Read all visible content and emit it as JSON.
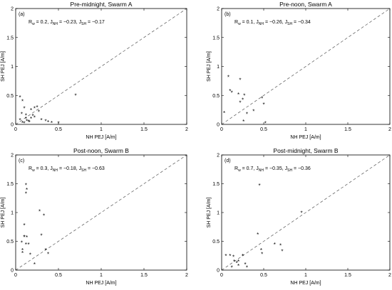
{
  "chart_data": [
    {
      "type": "scatter",
      "title": "Pre-midnight, Swarm A",
      "tag": "(a)",
      "stats": {
        "R": "0.2",
        "J_NH": "−0.23",
        "J_SH": "−0.17"
      },
      "xlabel": "NH PEJ [A/m]",
      "ylabel": "SH PEJ [A/m]",
      "xlim": [
        0,
        2
      ],
      "ylim": [
        0,
        2
      ],
      "xticks": [
        "0",
        "0.5",
        "1",
        "1.5",
        "2"
      ],
      "yticks": [
        "0",
        "0.5",
        "1",
        "1.5",
        "2"
      ],
      "reference_line": "y = x (dashed)",
      "x": [
        0.05,
        0.08,
        0.07,
        0.1,
        0.12,
        0.15,
        0.18,
        0.2,
        0.22,
        0.25,
        0.27,
        0.3,
        0.05,
        0.08,
        0.1,
        0.13,
        0.16,
        0.35,
        0.38,
        0.42,
        0.5,
        0.7,
        0.22,
        0.18,
        0.12
      ],
      "y": [
        0.47,
        0.4,
        0.18,
        0.28,
        0.1,
        0.05,
        0.25,
        0.15,
        0.12,
        0.3,
        0.22,
        0.08,
        0.08,
        0.03,
        0.02,
        0.06,
        0.04,
        0.06,
        0.04,
        0.03,
        0.02,
        0.5,
        0.28,
        0.1,
        0.16
      ]
    },
    {
      "type": "scatter",
      "title": "Pre-noon, Swarm A",
      "tag": "(b)",
      "stats": {
        "R": "0.1",
        "J_NH": "−0.26",
        "J_SH": "−0.34"
      },
      "xlabel": "NH PEJ [A/m]",
      "ylabel": "SH PEJ [A/m]",
      "xlim": [
        0,
        2
      ],
      "ylim": [
        0,
        2
      ],
      "xticks": [
        "0",
        "0.5",
        "1",
        "1.5",
        "2"
      ],
      "yticks": [
        "0",
        "0.5",
        "1",
        "1.5",
        "2"
      ],
      "reference_line": "y = x (dashed)",
      "x": [
        0.03,
        0.08,
        0.1,
        0.12,
        0.2,
        0.22,
        0.25,
        0.27,
        0.3,
        0.38,
        0.48,
        0.5,
        0.52,
        0.22,
        0.26
      ],
      "y": [
        0.2,
        0.82,
        0.58,
        0.55,
        0.52,
        0.77,
        0.43,
        0.5,
        0.18,
        0.23,
        0.45,
        0.35,
        0.02,
        0.38,
        0.05
      ]
    },
    {
      "type": "scatter",
      "title": "Post-noon, Swarm B",
      "tag": "(c)",
      "stats": {
        "R": "0.3",
        "J_NH": "−0.18",
        "J_SH": "−0.63"
      },
      "xlabel": "NH PEJ [A/m]",
      "ylabel": "SH PEJ [A/m]",
      "xlim": [
        0,
        2
      ],
      "ylim": [
        0,
        2
      ],
      "xticks": [
        "0",
        "0.5",
        "1",
        "1.5",
        "2"
      ],
      "yticks": [
        "0",
        "0.5",
        "1",
        "1.5",
        "2"
      ],
      "reference_line": "y = x (dashed)",
      "x": [
        0.12,
        0.13,
        0.12,
        0.1,
        0.07,
        0.08,
        0.1,
        0.13,
        0.12,
        0.17,
        0.28,
        0.33,
        0.35,
        0.38,
        0.22,
        0.08,
        0.1,
        0.15,
        0.3
      ],
      "y": [
        1.48,
        1.4,
        1.33,
        0.78,
        0.48,
        0.3,
        0.58,
        0.57,
        0.45,
        0.27,
        1.02,
        0.95,
        0.35,
        0.28,
        0.1,
        0.35,
        0.58,
        0.45,
        0.6
      ]
    },
    {
      "type": "scatter",
      "title": "Post-midnight, Swarm B",
      "tag": "(d)",
      "stats": {
        "R": "0.7",
        "J_NH": "−0.35",
        "J_SH": "−0.36"
      },
      "xlabel": "NH PEJ [A/m]",
      "ylabel": "SH PEJ [A/m]",
      "xlim": [
        0,
        2
      ],
      "ylim": [
        0,
        2
      ],
      "xticks": [
        "0",
        "0.5",
        "1",
        "1.5",
        "2"
      ],
      "yticks": [
        "0",
        "0.5",
        "1",
        "1.5",
        "2"
      ],
      "reference_line": "y = x (dashed)",
      "x": [
        0.05,
        0.1,
        0.14,
        0.15,
        0.18,
        0.2,
        0.25,
        0.28,
        0.3,
        0.43,
        0.45,
        0.47,
        0.48,
        0.63,
        0.7,
        0.72,
        0.95,
        0.2,
        0.12
      ],
      "y": [
        0.25,
        0.25,
        0.23,
        0.15,
        0.13,
        0.15,
        0.25,
        0.1,
        0.05,
        0.62,
        1.47,
        0.35,
        0.28,
        0.45,
        0.43,
        0.33,
        1.0,
        0.08,
        0.05
      ]
    }
  ]
}
